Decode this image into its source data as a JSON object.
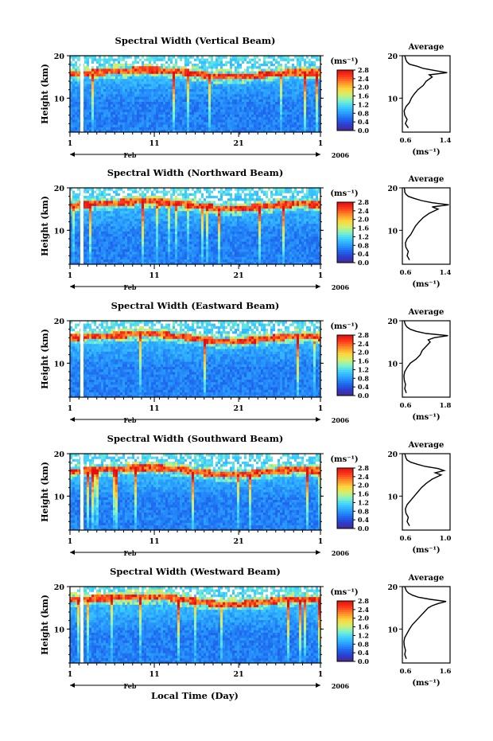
{
  "figure": {
    "x_axis_label": "Local Time (Day)",
    "month_label": "Feb",
    "year_label": "2006",
    "x_tick_labels": [
      "1",
      "11",
      "21",
      "1"
    ],
    "height_label": "Height (km)",
    "height_ticks": [
      "10",
      "20"
    ],
    "colorbar_unit": "(ms⁻¹)",
    "colorbar_ticks": [
      "0.0",
      "0.4",
      "0.8",
      "1.2",
      "1.6",
      "2.0",
      "2.4",
      "2.8"
    ],
    "colorbar_colors": [
      "#4a2a8a",
      "#2c3ccf",
      "#1e6cf0",
      "#2aa0ff",
      "#3fd0ff",
      "#7ff3c8",
      "#d6f06a",
      "#ffd23a",
      "#ff8a28",
      "#ff3a1c",
      "#e01010"
    ],
    "average_title": "Average",
    "average_unit": "(ms⁻¹)"
  },
  "chart_data": [
    {
      "type": "heatmap",
      "title": "Spectral Width (Vertical Beam)",
      "xlabel": "Local Time (Day)",
      "ylabel": "Height (km)",
      "ylim": [
        2,
        20
      ],
      "colorbar_range": [
        0.0,
        2.8
      ],
      "tropopause_km": [
        15.8,
        16.0,
        16.3,
        16.6,
        16.7,
        16.4,
        15.8,
        15.2,
        15.1,
        15.4,
        15.9,
        16.2,
        16.0
      ],
      "average_profile": {
        "xlim": [
          0.6,
          1.4
        ],
        "x_tick_labels": [
          "0.6",
          "1.4"
        ],
        "height_km": [
          3,
          4,
          5,
          6,
          7,
          8,
          9,
          10,
          11,
          12,
          13,
          14,
          15,
          15.5,
          16,
          16.5,
          17,
          17.5,
          18,
          18.5,
          19,
          19.5,
          20
        ],
        "values": [
          0.7,
          0.65,
          0.68,
          0.64,
          0.63,
          0.66,
          0.72,
          0.75,
          0.8,
          0.86,
          0.95,
          1.0,
          1.1,
          1.05,
          1.35,
          1.15,
          0.95,
          0.85,
          0.72,
          0.68,
          0.66,
          0.65,
          0.64
        ]
      }
    },
    {
      "type": "heatmap",
      "title": "Spectral Width (Northward Beam)",
      "xlabel": "Local Time (Day)",
      "ylabel": "Height (km)",
      "ylim": [
        2,
        20
      ],
      "colorbar_range": [
        0.0,
        2.8
      ],
      "tropopause_km": [
        15.9,
        16.2,
        16.5,
        16.8,
        16.9,
        16.5,
        15.9,
        15.3,
        15.1,
        15.5,
        16.0,
        16.3,
        16.1
      ],
      "average_profile": {
        "xlim": [
          0.6,
          1.4
        ],
        "x_tick_labels": [
          "0.6",
          "1.4"
        ],
        "height_km": [
          3,
          4,
          5,
          6,
          7,
          8,
          9,
          10,
          11,
          12,
          13,
          14,
          15,
          15.5,
          16,
          16.5,
          17,
          17.5,
          18,
          18.5,
          19,
          19.5,
          20
        ],
        "values": [
          0.72,
          0.68,
          0.7,
          0.66,
          0.65,
          0.68,
          0.74,
          0.78,
          0.82,
          0.88,
          0.95,
          1.05,
          1.2,
          1.1,
          1.38,
          1.1,
          0.92,
          0.8,
          0.7,
          0.66,
          0.64,
          0.64,
          0.63
        ]
      }
    },
    {
      "type": "heatmap",
      "title": "Spectral Width (Eastward Beam)",
      "xlabel": "Local Time (Day)",
      "ylabel": "Height (km)",
      "ylim": [
        2,
        20
      ],
      "colorbar_range": [
        0.0,
        2.8
      ],
      "tropopause_km": [
        16.0,
        16.3,
        16.6,
        16.9,
        17.0,
        16.5,
        15.9,
        15.3,
        15.2,
        15.6,
        16.1,
        16.4,
        16.2
      ],
      "average_profile": {
        "xlim": [
          0.6,
          1.8
        ],
        "x_tick_labels": [
          "0.6",
          "1.8"
        ],
        "height_km": [
          3,
          4,
          5,
          6,
          7,
          8,
          9,
          10,
          11,
          12,
          13,
          14,
          15,
          15.5,
          16,
          16.5,
          17,
          17.5,
          18,
          18.5,
          19,
          19.5,
          20
        ],
        "values": [
          0.7,
          0.66,
          0.68,
          0.65,
          0.64,
          0.66,
          0.72,
          0.8,
          0.95,
          1.05,
          1.1,
          1.2,
          1.3,
          1.25,
          1.4,
          1.75,
          1.2,
          0.95,
          0.8,
          0.72,
          0.68,
          0.66,
          0.65
        ]
      }
    },
    {
      "type": "heatmap",
      "title": "Spectral Width (Southward Beam)",
      "xlabel": "Local Time (Day)",
      "ylabel": "Height (km)",
      "ylim": [
        2,
        20
      ],
      "colorbar_range": [
        0.0,
        2.8
      ],
      "tropopause_km": [
        15.9,
        16.1,
        16.4,
        16.7,
        16.8,
        16.4,
        15.8,
        15.3,
        15.1,
        15.5,
        16.0,
        16.3,
        16.1
      ],
      "average_profile": {
        "xlim": [
          0.6,
          1.4
        ],
        "x_tick_labels": [
          "0.6",
          "1.0"
        ],
        "height_km": [
          3,
          4,
          5,
          6,
          7,
          8,
          9,
          10,
          11,
          12,
          13,
          14,
          15,
          15.5,
          16,
          16.5,
          17,
          17.5,
          18,
          18.5,
          19,
          19.5,
          20
        ],
        "values": [
          0.72,
          0.68,
          0.7,
          0.66,
          0.65,
          0.68,
          0.74,
          0.8,
          0.86,
          0.92,
          1.0,
          1.1,
          1.25,
          1.15,
          1.3,
          1.2,
          0.98,
          0.85,
          0.74,
          0.68,
          0.66,
          0.65,
          0.64
        ]
      }
    },
    {
      "type": "heatmap",
      "title": "Spectral Width (Westward Beam)",
      "xlabel": "Local Time (Day)",
      "ylabel": "Height (km)",
      "ylim": [
        2,
        20
      ],
      "colorbar_range": [
        0.0,
        2.8
      ],
      "tropopause_km": [
        17.0,
        17.2,
        17.4,
        17.6,
        17.7,
        17.3,
        16.6,
        16.0,
        15.9,
        16.2,
        16.8,
        17.2,
        17.1
      ],
      "average_profile": {
        "xlim": [
          0.6,
          1.8
        ],
        "x_tick_labels": [
          "0.6",
          "1.6"
        ],
        "height_km": [
          3,
          4,
          5,
          6,
          7,
          8,
          9,
          10,
          11,
          12,
          13,
          14,
          15,
          15.5,
          16,
          16.5,
          17,
          17.5,
          18,
          18.5,
          19,
          19.5,
          20
        ],
        "values": [
          0.7,
          0.66,
          0.68,
          0.65,
          0.64,
          0.66,
          0.72,
          0.78,
          0.85,
          0.95,
          1.05,
          1.15,
          1.25,
          1.35,
          1.5,
          1.7,
          1.3,
          1.0,
          0.85,
          0.75,
          0.7,
          0.68,
          0.66
        ]
      }
    }
  ]
}
